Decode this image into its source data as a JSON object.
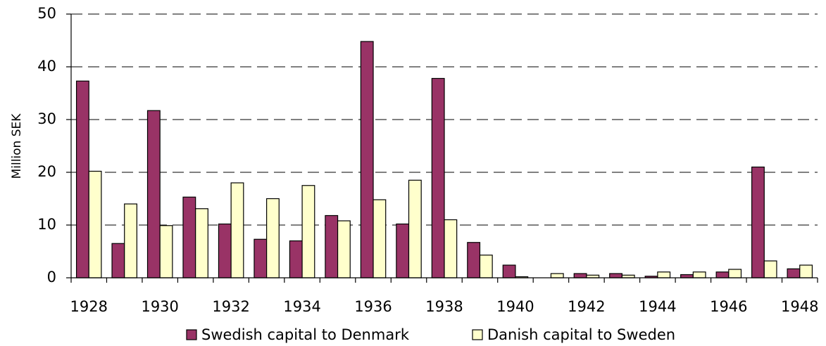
{
  "chart_data": {
    "type": "bar",
    "y_label": "Million SEK",
    "categories": [
      "1928",
      null,
      "1930",
      null,
      "1932",
      null,
      "1934",
      null,
      "1936",
      null,
      "1938",
      null,
      "1940",
      null,
      "1942",
      null,
      "1944",
      null,
      "1946",
      null,
      "1948"
    ],
    "series": [
      {
        "name": "Swedish capital to Denmark",
        "color": "#993366",
        "values": [
          37.3,
          6.5,
          31.7,
          15.3,
          10.2,
          7.3,
          7.0,
          11.8,
          44.8,
          10.2,
          37.8,
          6.7,
          2.4,
          0,
          0.8,
          0.8,
          0.3,
          0.6,
          1.1,
          21.0,
          1.7
        ]
      },
      {
        "name": "Danish capital to Sweden",
        "color": "#ffffcc",
        "values": [
          20.2,
          14.0,
          9.9,
          13.1,
          18.0,
          15.0,
          17.5,
          10.8,
          14.8,
          18.5,
          11.0,
          4.3,
          0.2,
          0.8,
          0.5,
          0.5,
          1.1,
          1.1,
          1.6,
          3.2,
          2.4
        ]
      }
    ],
    "ylim": [
      0,
      50
    ],
    "yticks": [
      0,
      10,
      20,
      30,
      40,
      50
    ],
    "grid": true
  }
}
